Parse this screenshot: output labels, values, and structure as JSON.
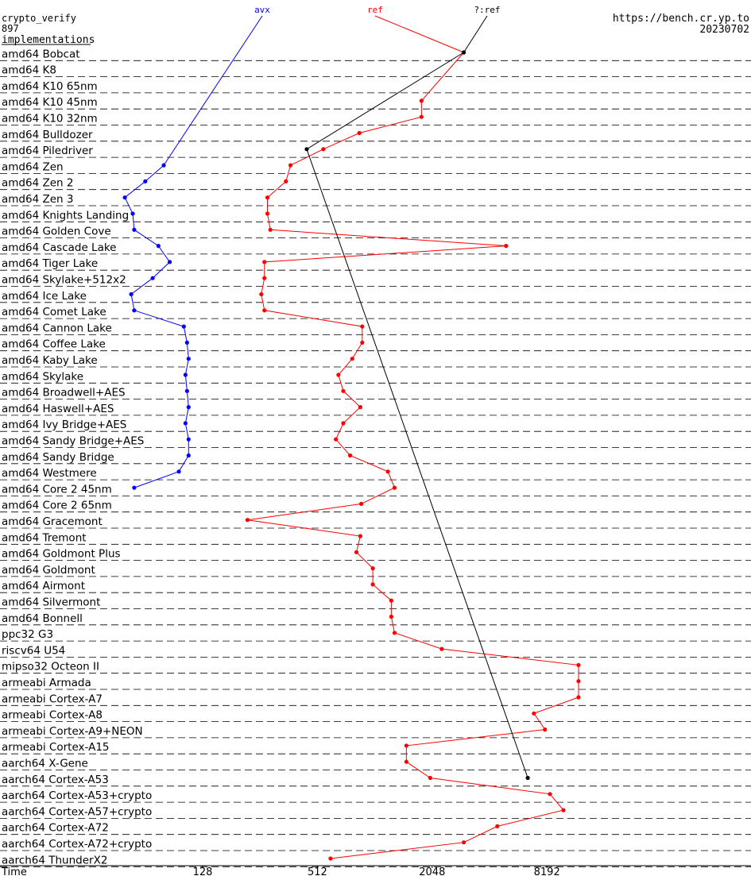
{
  "header": {
    "left_title": "crypto_verify",
    "left_count": "897",
    "left_subtitle": "implementations",
    "right_url": "https://bench.cr.yp.to",
    "right_date": "20230702"
  },
  "chart_data": {
    "type": "line",
    "series": [
      {
        "name": "avx",
        "color": "#0000ff",
        "values": [
          null,
          null,
          null,
          null,
          null,
          null,
          null,
          80,
          64,
          50,
          55,
          56,
          75,
          86,
          70,
          54,
          56,
          102,
          106,
          108,
          104,
          106,
          108,
          104,
          108,
          108,
          96,
          56,
          null,
          null,
          null,
          null,
          null,
          null,
          null,
          null,
          null,
          null,
          null,
          null,
          null,
          null,
          null,
          null,
          null,
          null,
          null,
          null,
          null,
          null,
          null
        ]
      },
      {
        "name": "ref",
        "color": "#ff0000",
        "values": [
          3000,
          null,
          null,
          1800,
          1800,
          850,
          550,
          370,
          350,
          280,
          280,
          290,
          5000,
          270,
          270,
          260,
          270,
          880,
          880,
          780,
          660,
          700,
          860,
          700,
          640,
          760,
          1200,
          1300,
          870,
          220,
          860,
          820,
          1000,
          1000,
          1250,
          1250,
          1300,
          2300,
          12000,
          12000,
          12000,
          7000,
          8000,
          1500,
          1500,
          2000,
          8500,
          10000,
          4500,
          3000,
          600
        ]
      },
      {
        "name": "?:ref",
        "color": "#000000",
        "values": [
          3000,
          null,
          null,
          null,
          null,
          null,
          450,
          null,
          null,
          null,
          null,
          null,
          null,
          null,
          null,
          null,
          null,
          null,
          null,
          null,
          null,
          null,
          null,
          null,
          null,
          null,
          null,
          null,
          null,
          null,
          null,
          null,
          null,
          null,
          null,
          null,
          null,
          null,
          null,
          null,
          null,
          null,
          null,
          null,
          null,
          6500,
          null,
          null,
          null,
          null,
          null
        ]
      }
    ],
    "categories": [
      "amd64 Bobcat",
      "amd64 K8",
      "amd64 K10 65nm",
      "amd64 K10 45nm",
      "amd64 K10 32nm",
      "amd64 Bulldozer",
      "amd64 Piledriver",
      "amd64 Zen",
      "amd64 Zen 2",
      "amd64 Zen 3",
      "amd64 Knights Landing",
      "amd64 Golden Cove",
      "amd64 Cascade Lake",
      "amd64 Tiger Lake",
      "amd64 Skylake+512x2",
      "amd64 Ice Lake",
      "amd64 Comet Lake",
      "amd64 Cannon Lake",
      "amd64 Coffee Lake",
      "amd64 Kaby Lake",
      "amd64 Skylake",
      "amd64 Broadwell+AES",
      "amd64 Haswell+AES",
      "amd64 Ivy Bridge+AES",
      "amd64 Sandy Bridge+AES",
      "amd64 Sandy Bridge",
      "amd64 Westmere",
      "amd64 Core 2 45nm",
      "amd64 Core 2 65nm",
      "amd64 Gracemont",
      "amd64 Tremont",
      "amd64 Goldmont Plus",
      "amd64 Goldmont",
      "amd64 Airmont",
      "amd64 Silvermont",
      "amd64 Bonnell",
      "ppc32 G3",
      "riscv64 U54",
      "mipso32 Octeon II",
      "armeabi Armada",
      "armeabi Cortex-A7",
      "armeabi Cortex-A8",
      "armeabi Cortex-A9+NEON",
      "armeabi Cortex-A15",
      "aarch64 X-Gene",
      "aarch64 Cortex-A53",
      "aarch64 Cortex-A53+crypto",
      "aarch64 Cortex-A57+crypto",
      "aarch64 Cortex-A72",
      "aarch64 Cortex-A72+crypto",
      "aarch64 ThunderX2"
    ],
    "x_axis": {
      "label": "Time",
      "scale": "log2",
      "ticks": [
        128,
        512,
        2048,
        8192
      ],
      "range": [
        16,
        32768
      ]
    },
    "legend": "top, labels at line ends",
    "grid": "dashed horizontal separators"
  }
}
